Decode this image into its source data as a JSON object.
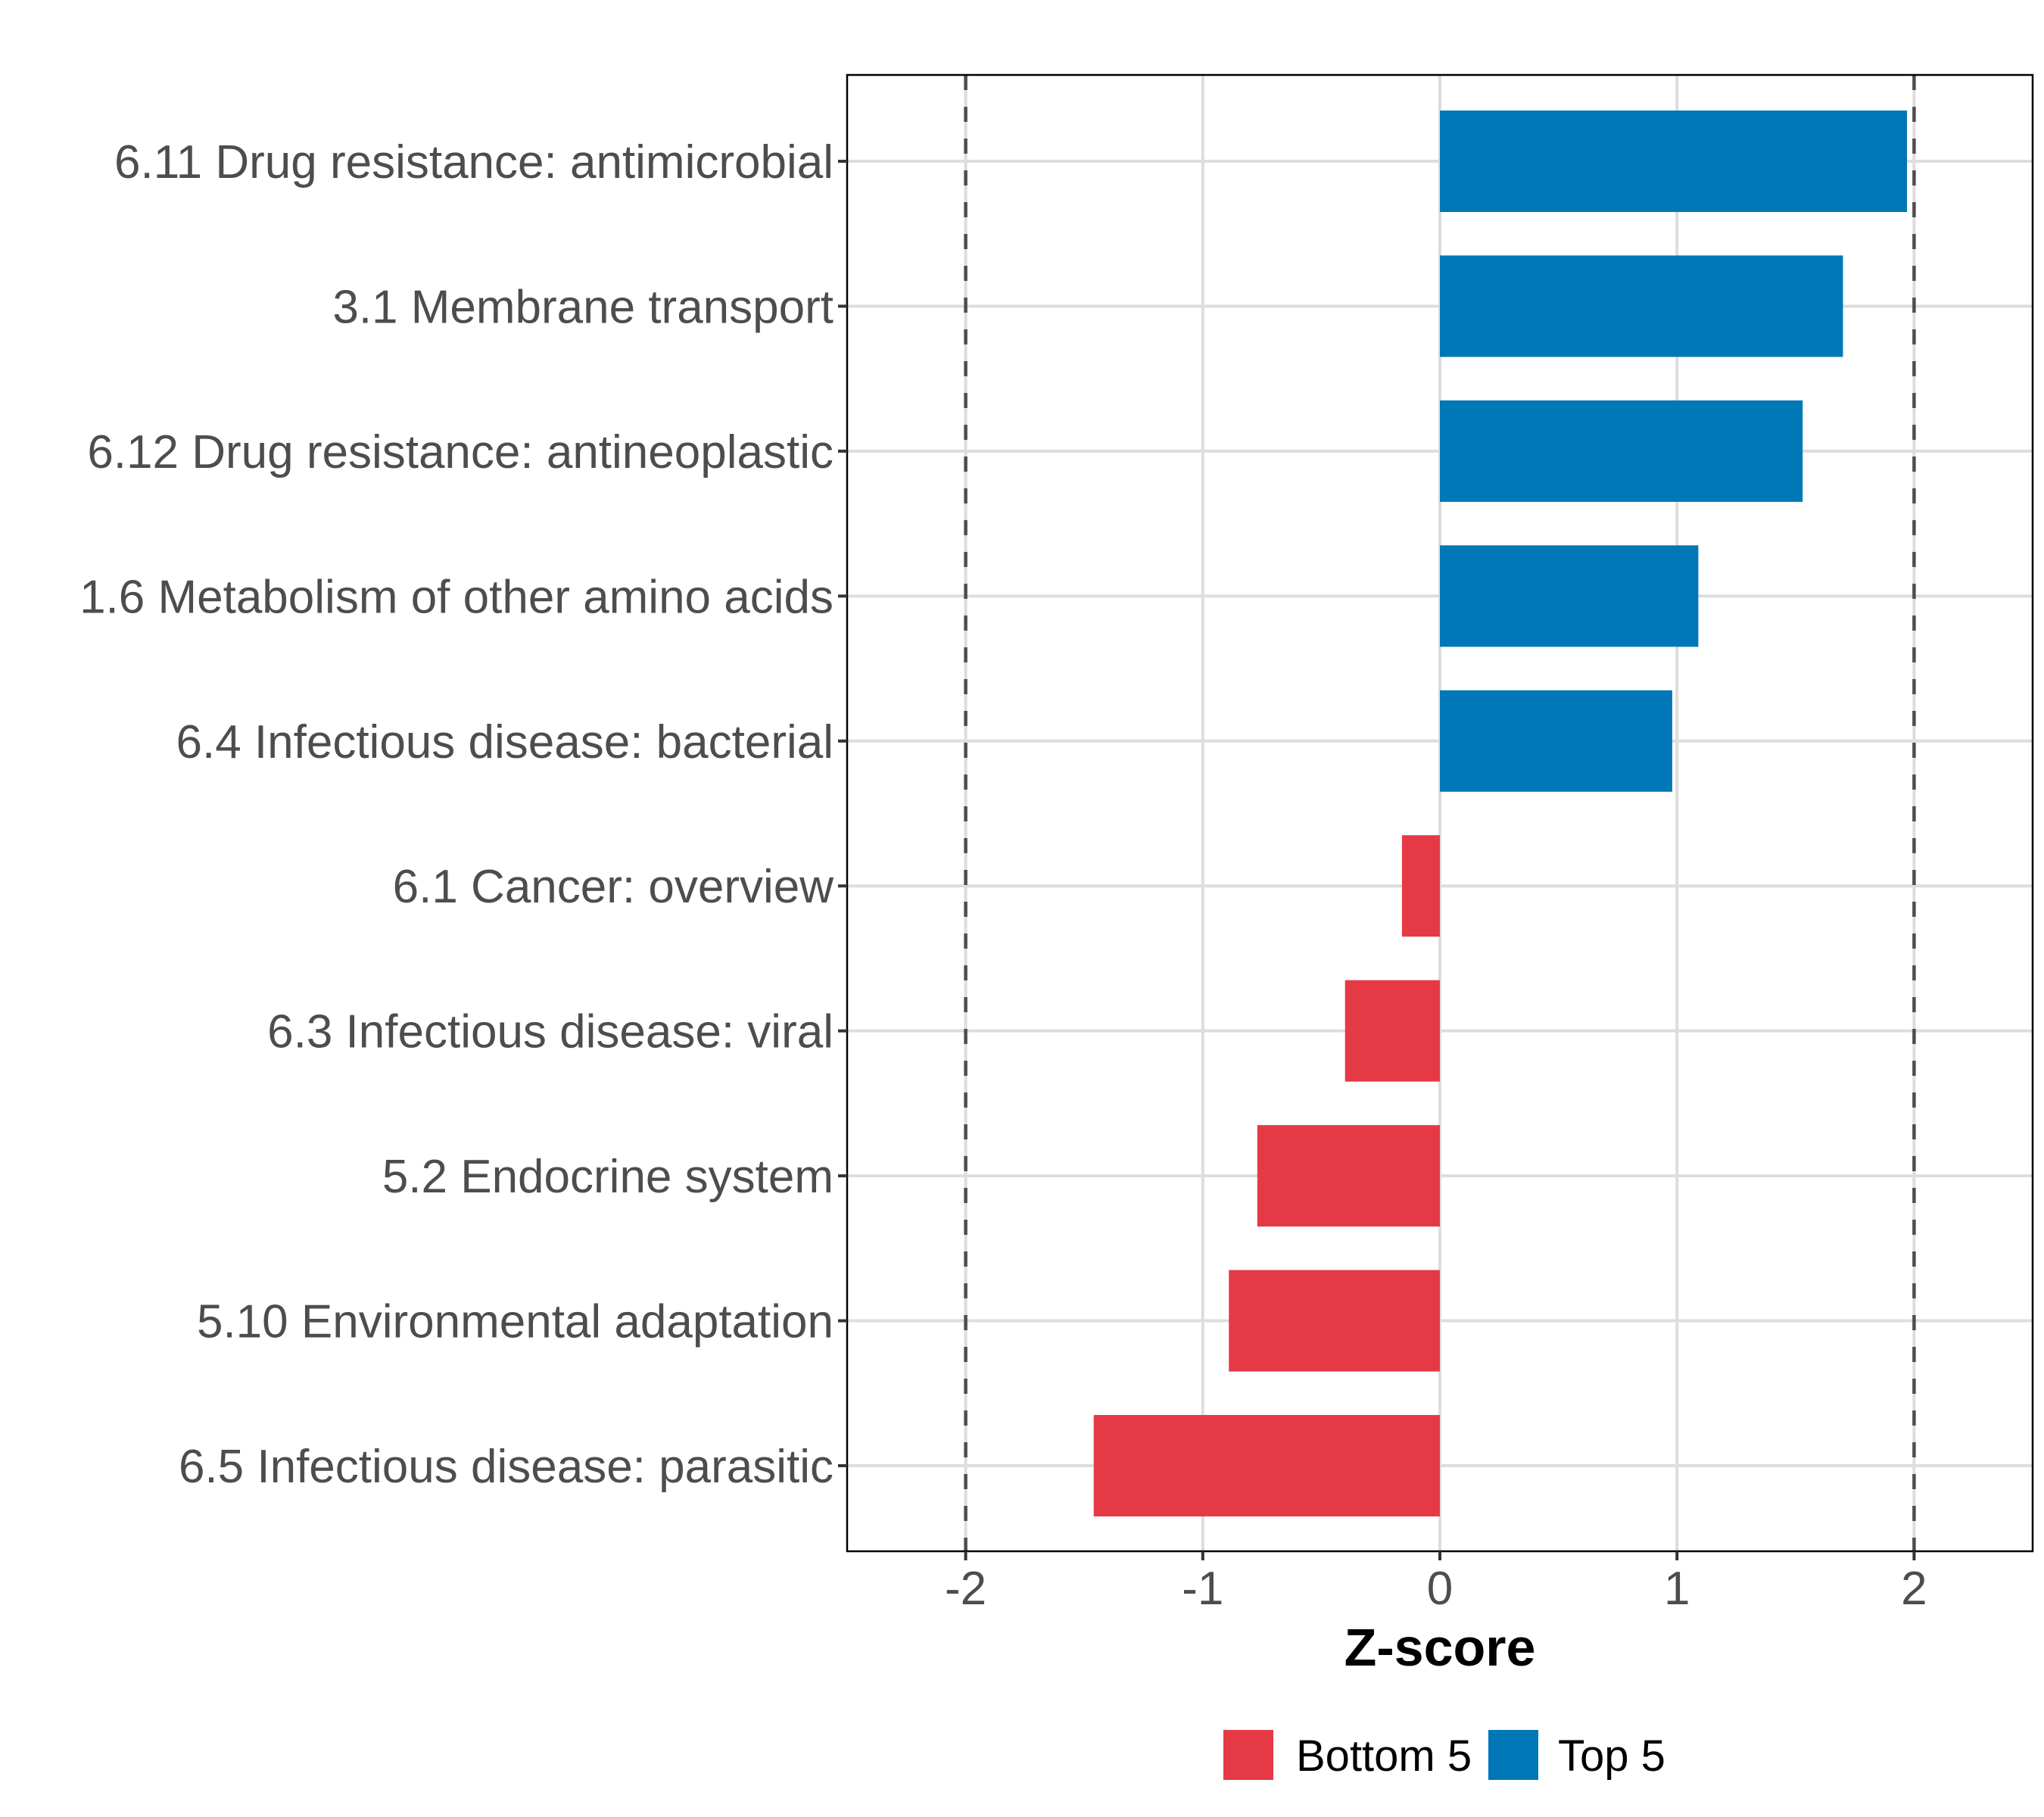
{
  "chart_data": {
    "type": "bar",
    "orientation": "horizontal",
    "title": "",
    "xlabel": "Z-score",
    "ylabel": "",
    "xlim": [
      -2.5,
      2.5
    ],
    "x_ticks": [
      -2,
      -1,
      0,
      1,
      2
    ],
    "x_tick_labels": [
      "-2",
      "-1",
      "0",
      "1",
      "2"
    ],
    "reference_lines": [
      -2,
      2
    ],
    "grid": true,
    "categories": [
      "6.11 Drug resistance: antimicrobial",
      "3.1 Membrane transport",
      "6.12 Drug resistance: antineoplastic",
      "1.6 Metabolism of other amino acids",
      "6.4 Infectious disease: bacterial",
      "6.1 Cancer: overview",
      "6.3 Infectious disease: viral",
      "5.2 Endocrine system",
      "5.10 Environmental adaptation",
      "6.5 Infectious disease: parasitic"
    ],
    "values": [
      1.97,
      1.7,
      1.53,
      1.09,
      0.98,
      -0.16,
      -0.4,
      -0.77,
      -0.89,
      -1.46
    ],
    "groups": [
      "Top 5",
      "Top 5",
      "Top 5",
      "Top 5",
      "Top 5",
      "Bottom 5",
      "Bottom 5",
      "Bottom 5",
      "Bottom 5",
      "Bottom 5"
    ],
    "legend": {
      "position": "bottom",
      "entries": [
        {
          "label": "Bottom 5",
          "color": "#E63946"
        },
        {
          "label": "Top 5",
          "color": "#0077B6"
        }
      ]
    },
    "colors": {
      "Top 5": "#0077B6",
      "Bottom 5": "#E63946",
      "grid": "#DDDDDD",
      "reference_line": "#4D4D4D",
      "text": "#4D4D4D"
    }
  }
}
